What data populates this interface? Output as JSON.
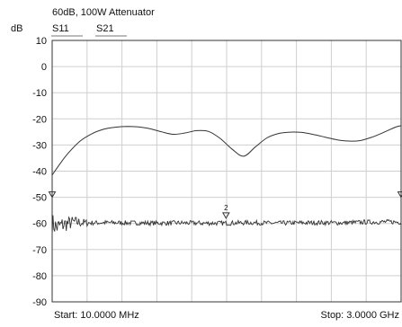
{
  "chart_data": {
    "type": "line",
    "title": "60dB, 100W Attenuator",
    "ylabel": "dB",
    "legend": [
      "S11",
      "S21"
    ],
    "ylim": [
      -90,
      10
    ],
    "yticks": [
      10,
      0,
      -10,
      -20,
      -30,
      -40,
      -50,
      -60,
      -70,
      -80,
      -90
    ],
    "x_start_label": "Start: 10.0000 MHz",
    "x_stop_label": "Stop: 3.0000 GHz",
    "xlim_ghz": [
      0.01,
      3.0
    ],
    "x_grid_divisions": 10,
    "grid": true,
    "series": [
      {
        "name": "S11",
        "x_ghz": [
          0.01,
          0.08,
          0.15,
          0.25,
          0.35,
          0.45,
          0.55,
          0.65,
          0.75,
          0.85,
          0.95,
          1.05,
          1.15,
          1.25,
          1.35,
          1.45,
          1.55,
          1.65,
          1.75,
          1.85,
          1.95,
          2.05,
          2.15,
          2.25,
          2.35,
          2.45,
          2.55,
          2.65,
          2.75,
          2.85,
          2.95,
          3.0
        ],
        "y_db": [
          -41.5,
          -37,
          -33,
          -28.5,
          -25.7,
          -24,
          -23.2,
          -22.9,
          -23.1,
          -23.8,
          -25,
          -25.9,
          -25.4,
          -24.5,
          -24.8,
          -27.5,
          -31.5,
          -34.3,
          -30.8,
          -27.3,
          -25.6,
          -25.1,
          -25.2,
          -26,
          -27,
          -28,
          -28.5,
          -28.3,
          -27,
          -25.2,
          -23.2,
          -22.6
        ]
      },
      {
        "name": "S21",
        "x_ghz": [
          0.01,
          0.05,
          0.1,
          0.2,
          0.3,
          0.5,
          0.7,
          0.9,
          1.1,
          1.3,
          1.5,
          1.7,
          1.9,
          2.1,
          2.3,
          2.5,
          2.7,
          2.9,
          3.0
        ],
        "y_db": [
          -60,
          -61.5,
          -60.5,
          -59.5,
          -59.8,
          -59.7,
          -59.8,
          -59.9,
          -59.8,
          -59.9,
          -59.9,
          -59.7,
          -59.9,
          -59.8,
          -59.7,
          -59.8,
          -59.5,
          -59.4,
          -59.5
        ]
      }
    ],
    "markers": [
      {
        "label": "",
        "x_ghz": 0.01,
        "y_db": -50
      },
      {
        "label": "2",
        "x_ghz": 1.5,
        "y_db": -58
      },
      {
        "label": "",
        "x_ghz": 3.0,
        "y_db": -50
      }
    ]
  }
}
